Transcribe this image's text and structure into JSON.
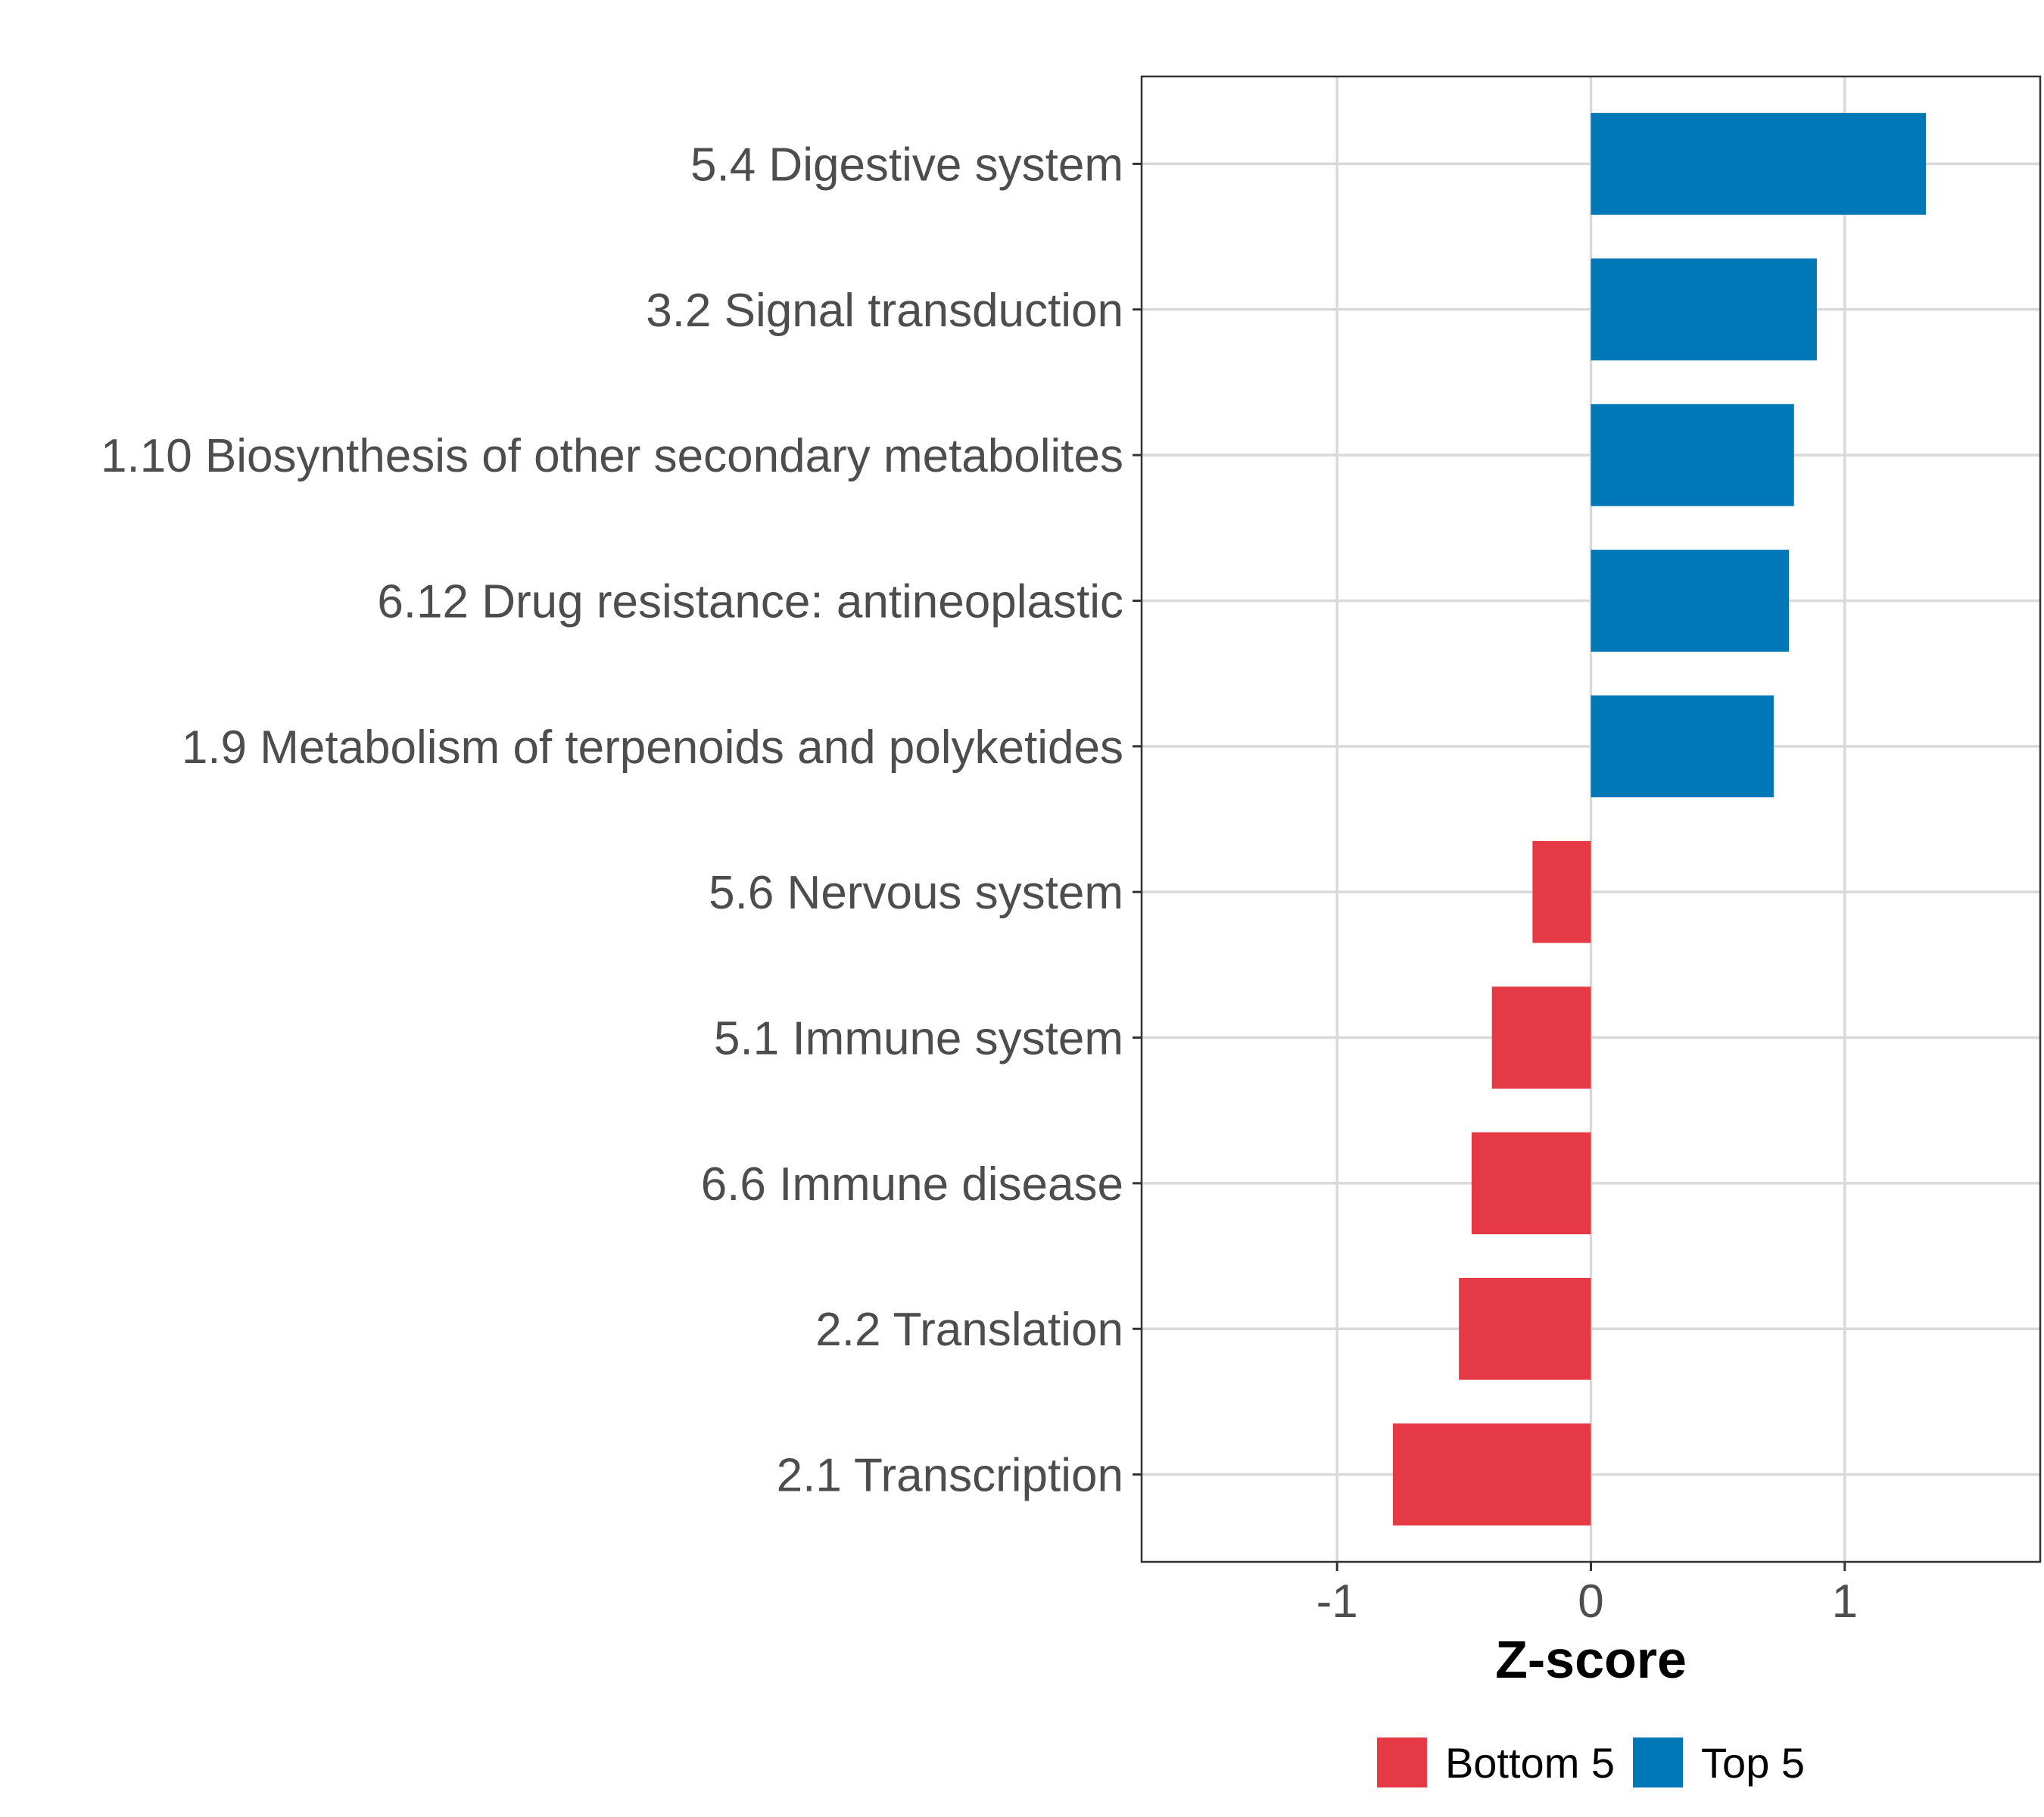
{
  "chart_data": {
    "type": "bar",
    "orientation": "horizontal",
    "categories": [
      "5.4 Digestive system",
      "3.2 Signal transduction",
      "1.10 Biosynthesis of other secondary metabolites",
      "6.12 Drug resistance: antineoplastic",
      "1.9 Metabolism of terpenoids and polyketides",
      "5.6 Nervous system",
      "5.1 Immune system",
      "6.6 Immune disease",
      "2.2 Translation",
      "2.1 Transcription"
    ],
    "values": [
      1.32,
      0.89,
      0.8,
      0.78,
      0.72,
      -0.23,
      -0.39,
      -0.47,
      -0.52,
      -0.78
    ],
    "groups": [
      "Top 5",
      "Top 5",
      "Top 5",
      "Top 5",
      "Top 5",
      "Bottom 5",
      "Bottom 5",
      "Bottom 5",
      "Bottom 5",
      "Bottom 5"
    ],
    "xlabel": "Z-score",
    "ylabel": "",
    "xlim": [
      -1.77,
      1.77
    ],
    "xticks": [
      -1,
      0,
      1
    ],
    "xtick_labels": [
      "-1",
      "0",
      "1"
    ],
    "grid": true,
    "legend": {
      "position": "bottom",
      "entries": [
        {
          "label": "Bottom 5",
          "color": "#e63946"
        },
        {
          "label": "Top 5",
          "color": "#0077b6"
        }
      ]
    },
    "colors": {
      "Top 5": "#0077b6",
      "Bottom 5": "#e63946"
    }
  }
}
